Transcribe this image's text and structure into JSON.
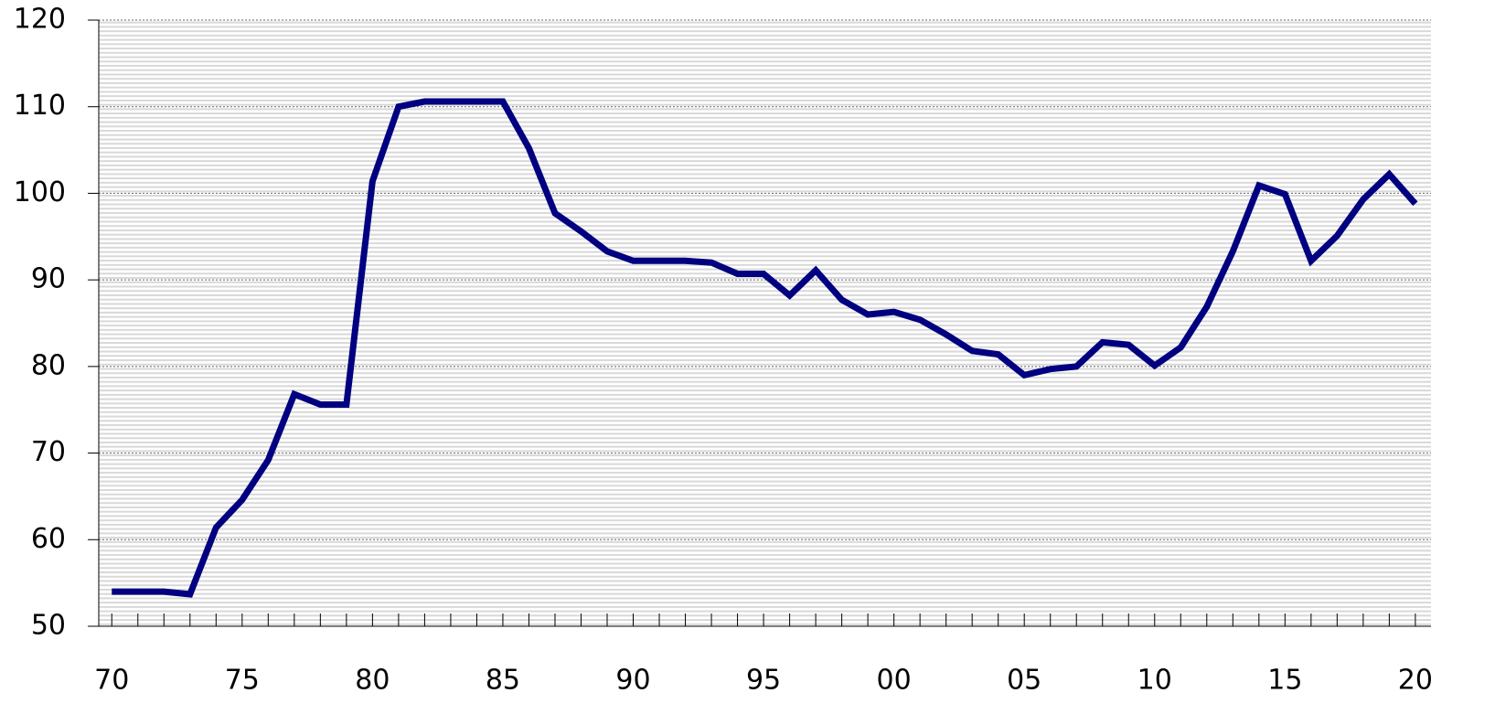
{
  "chart_data": {
    "type": "line",
    "x": [
      1970,
      1971,
      1972,
      1973,
      1974,
      1975,
      1976,
      1977,
      1978,
      1979,
      1980,
      1981,
      1982,
      1983,
      1984,
      1985,
      1986,
      1987,
      1988,
      1989,
      1990,
      1991,
      1992,
      1993,
      1994,
      1995,
      1996,
      1997,
      1998,
      1999,
      2000,
      2001,
      2002,
      2003,
      2004,
      2005,
      2006,
      2007,
      2008,
      2009,
      2010,
      2011,
      2012,
      2013,
      2014,
      2015,
      2016,
      2017,
      2018,
      2019,
      2020
    ],
    "series": [
      {
        "color": "#000080",
        "values": [
          54.0,
          54.0,
          54.0,
          53.7,
          61.4,
          64.6,
          69.2,
          76.8,
          75.6,
          75.6,
          101.4,
          110.0,
          110.6,
          110.6,
          110.6,
          110.6,
          105.2,
          97.7,
          95.6,
          93.3,
          92.2,
          92.2,
          92.2,
          92.0,
          90.7,
          90.7,
          88.2,
          91.1,
          87.7,
          86.0,
          86.3,
          85.4,
          83.7,
          81.8,
          81.4,
          79.0,
          79.7,
          80.0,
          82.8,
          82.5,
          80.1,
          82.2,
          86.9,
          93.3,
          100.9,
          99.9,
          92.2,
          95.1,
          99.3,
          102.2,
          98.8
        ]
      }
    ],
    "xlim": [
      1969.5,
      2020.6
    ],
    "xticks": [
      {
        "value": 1970,
        "label": "70"
      },
      {
        "value": 1975,
        "label": "75"
      },
      {
        "value": 1980,
        "label": "80"
      },
      {
        "value": 1985,
        "label": "85"
      },
      {
        "value": 1990,
        "label": "90"
      },
      {
        "value": 1995,
        "label": "95"
      },
      {
        "value": 2000,
        "label": "00"
      },
      {
        "value": 2005,
        "label": "05"
      },
      {
        "value": 2010,
        "label": "10"
      },
      {
        "value": 2015,
        "label": "15"
      },
      {
        "value": 2020,
        "label": "20"
      }
    ],
    "ylim": [
      50,
      120
    ],
    "yticks": [
      50,
      60,
      70,
      80,
      90,
      100,
      110,
      120
    ],
    "grid": true
  }
}
